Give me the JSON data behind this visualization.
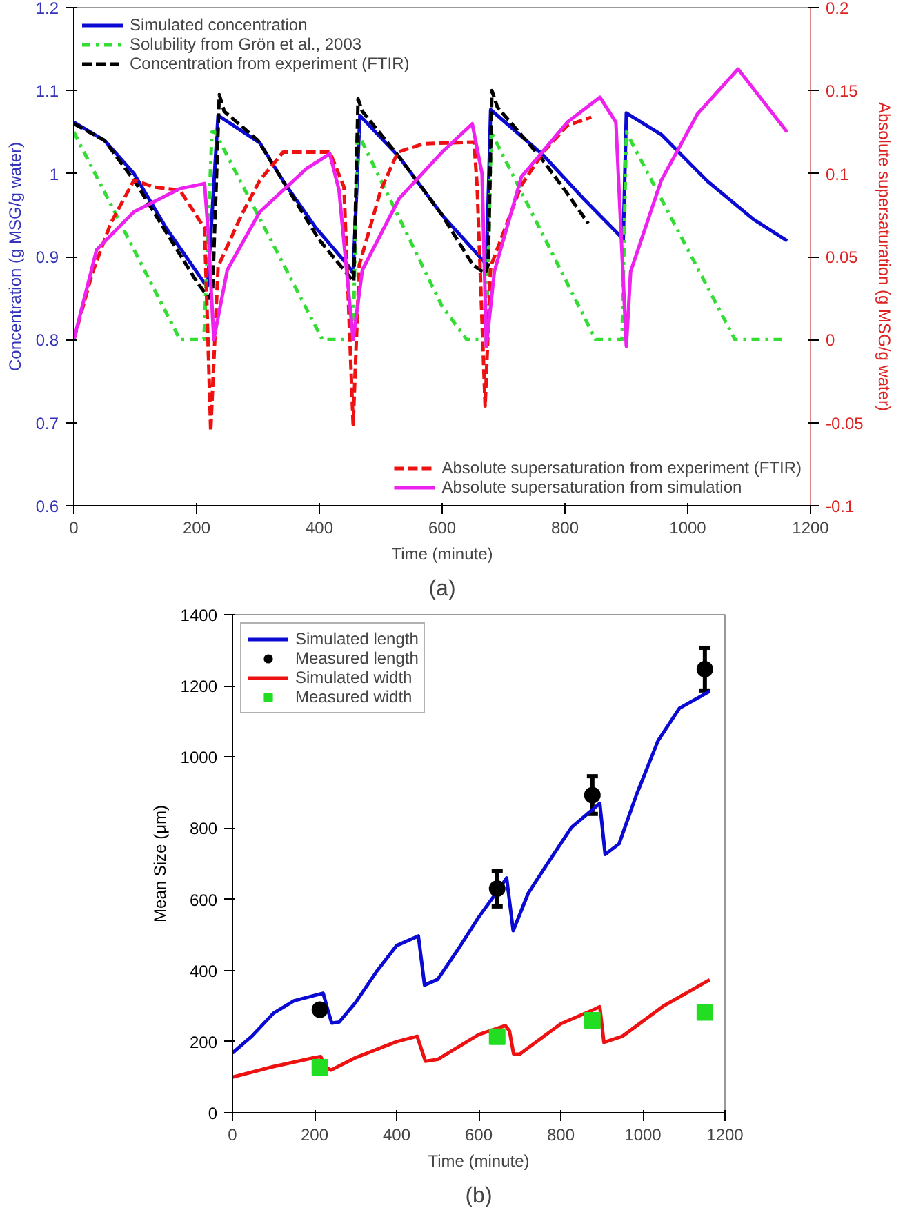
{
  "chart_data": [
    {
      "type": "line",
      "xlabel": "Time (minute)",
      "ylabel": "Concentration (g MSG/g water)",
      "y2label": "Absolute supersaturation (g MSG/g water)",
      "annotations": [
        "(a)"
      ],
      "xlim": [
        0,
        1200
      ],
      "xticks": [
        0,
        200,
        400,
        600,
        800,
        1000,
        1200
      ],
      "ylim": [
        0.6,
        1.2
      ],
      "yticks": [
        0.6,
        0.7,
        0.8,
        0.9,
        1,
        1.1,
        1.2
      ],
      "y2lim": [
        -0.1,
        0.2
      ],
      "y2ticks": [
        -0.1,
        -0.05,
        0,
        0.05,
        0.1,
        0.15,
        0.2
      ],
      "grid": false,
      "legend": "left",
      "series": [
        {
          "name": "Simulated concentration",
          "color": "#0a0ad2",
          "line_style": "solid",
          "x": [
            0,
            50,
            98,
            150,
            212,
            218,
            235,
            303,
            341,
            394,
            447,
            455,
            466,
            530,
            600,
            667,
            672,
            679,
            765,
            830,
            891,
            895,
            900,
            957,
            1032,
            1107,
            1162
          ],
          "values": [
            1.062,
            1.04,
            1.0,
            0.935,
            0.869,
            0.865,
            1.07,
            1.037,
            0.991,
            0.935,
            0.889,
            0.88,
            1.07,
            1.02,
            0.95,
            0.895,
            0.89,
            1.077,
            1.022,
            0.97,
            0.924,
            0.92,
            1.073,
            1.047,
            0.991,
            0.945,
            0.919
          ]
        },
        {
          "name": "Solubility from Grön et al., 2003",
          "color": "#33dd33",
          "line_style": "dashdot",
          "x": [
            0,
            173,
            212,
            225,
            230,
            405,
            455,
            462,
            600,
            640,
            672,
            680,
            850,
            893,
            900,
            1077,
            1160
          ],
          "values": [
            1.05,
            0.8,
            0.8,
            1.05,
            1.05,
            0.8,
            0.8,
            1.05,
            0.84,
            0.8,
            0.8,
            1.05,
            0.8,
            0.8,
            1.05,
            0.8,
            0.8
          ]
        },
        {
          "name": "Concentration from experiment (FTIR)",
          "color": "#000000",
          "line_style": "dashed",
          "x": [
            0,
            50,
            100,
            150,
            200,
            220,
            226,
            237,
            245,
            300,
            350,
            400,
            450,
            456,
            463,
            470,
            530,
            600,
            650,
            670,
            675,
            681,
            690,
            760,
            800,
            838
          ],
          "values": [
            1.06,
            1.04,
            0.99,
            0.93,
            0.87,
            0.85,
            0.86,
            1.095,
            1.075,
            1.04,
            0.98,
            0.92,
            0.875,
            0.87,
            1.09,
            1.075,
            1.02,
            0.95,
            0.89,
            0.88,
            0.89,
            1.1,
            1.08,
            1.02,
            0.98,
            0.94
          ]
        },
        {
          "name": "Absolute supersaturation from experiment (FTIR)",
          "color": "#ee1111",
          "line_style": "dashed",
          "axis": "y2",
          "x": [
            0,
            30,
            60,
            98,
            130,
            173,
            213,
            223,
            235,
            273,
            303,
            341,
            417,
            440,
            455,
            465,
            500,
            528,
            570,
            652,
            657,
            670,
            679,
            729,
            765,
            804,
            843
          ],
          "values": [
            0.0,
            0.04,
            0.07,
            0.096,
            0.092,
            0.09,
            0.067,
            -0.055,
            0.044,
            0.075,
            0.096,
            0.113,
            0.113,
            0.092,
            -0.051,
            0.045,
            0.09,
            0.113,
            0.118,
            0.119,
            0.092,
            -0.04,
            0.044,
            0.093,
            0.113,
            0.129,
            0.134
          ]
        },
        {
          "name": "Absolute supersaturation from simulation",
          "color": "#ee22ee",
          "line_style": "solid",
          "axis": "y2",
          "x": [
            0,
            37,
            98,
            173,
            213,
            219,
            228,
            250,
            303,
            379,
            417,
            432,
            455,
            470,
            530,
            600,
            649,
            665,
            672,
            685,
            729,
            804,
            857,
            883,
            900,
            907,
            957,
            1016,
            1082,
            1162
          ],
          "values": [
            0.0,
            0.054,
            0.077,
            0.091,
            0.094,
            0.064,
            0.0,
            0.042,
            0.077,
            0.103,
            0.112,
            0.09,
            0.0,
            0.042,
            0.085,
            0.113,
            0.13,
            0.1,
            -0.004,
            0.041,
            0.098,
            0.131,
            0.146,
            0.131,
            -0.004,
            0.041,
            0.096,
            0.136,
            0.163,
            0.125
          ]
        }
      ]
    },
    {
      "type": "line",
      "xlabel": "Time (minute)",
      "ylabel": "Mean Size (μm)",
      "annotations": [
        "(b)"
      ],
      "xlim": [
        0,
        1200
      ],
      "xticks": [
        0,
        200,
        400,
        600,
        800,
        1000,
        1200
      ],
      "ylim": [
        0,
        1400
      ],
      "yticks": [
        0,
        200,
        400,
        600,
        800,
        1000,
        1200,
        1400
      ],
      "grid": false,
      "legend": "top left",
      "series": [
        {
          "name": "Simulated length",
          "color": "#0a0ad2",
          "line_style": "solid",
          "x": [
            0,
            47,
            100,
            150,
            200,
            221,
            232,
            242,
            260,
            300,
            353,
            400,
            453,
            468,
            500,
            550,
            600,
            650,
            668,
            684,
            721,
            773,
            826,
            880,
            895,
            908,
            942,
            984,
            1037,
            1089,
            1163
          ],
          "values": [
            168,
            215,
            280,
            315,
            330,
            336,
            290,
            252,
            255,
            310,
            400,
            470,
            497,
            359,
            375,
            460,
            550,
            630,
            660,
            512,
            618,
            710,
            802,
            855,
            870,
            726,
            756,
            893,
            1046,
            1137,
            1185
          ]
        },
        {
          "name": "Measured length",
          "color": "#000000",
          "type": "scatter",
          "marker": "circle",
          "x": [
            213,
            645,
            877,
            1151
          ],
          "values": [
            290,
            630,
            893,
            1247
          ],
          "errors": [
            null,
            50,
            53,
            60
          ]
        },
        {
          "name": "Simulated width",
          "color": "#ee1111",
          "line_style": "solid",
          "x": [
            0,
            100,
            200,
            215,
            225,
            240,
            300,
            400,
            450,
            460,
            470,
            500,
            600,
            665,
            675,
            685,
            700,
            800,
            880,
            895,
            905,
            950,
            1050,
            1163
          ],
          "values": [
            100,
            130,
            155,
            158,
            130,
            120,
            155,
            200,
            215,
            180,
            145,
            150,
            220,
            245,
            230,
            165,
            165,
            250,
            290,
            298,
            198,
            215,
            300,
            374
          ]
        },
        {
          "name": "Measured width",
          "color": "#22dd22",
          "type": "scatter",
          "marker": "square",
          "x": [
            213,
            645,
            877,
            1151
          ],
          "values": [
            128,
            214,
            260,
            282
          ]
        }
      ]
    }
  ]
}
